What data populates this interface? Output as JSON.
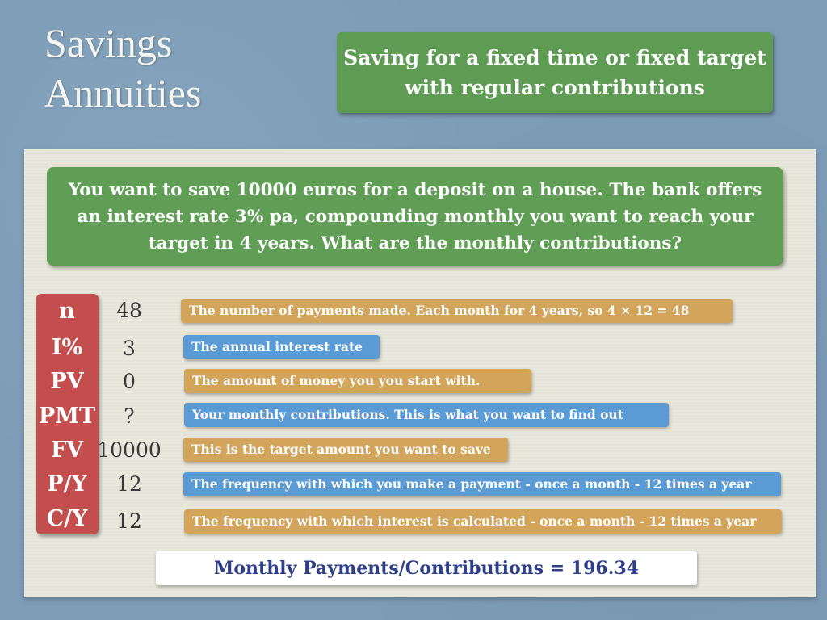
{
  "title": {
    "line1": "Savings",
    "line2": "Annuities"
  },
  "subtitle": "Saving for a fixed time or fixed target with regular contributions",
  "question": "You want to save 10000 euros for a deposit on a house. The bank offers an interest rate 3% pa, compounding monthly you want to reach your target in 4 years. What are the monthly contributions?",
  "variables": [
    {
      "label": "n",
      "value": "48",
      "description": "The number of payments made. Each month for 4 years, so 4 × 12 = 48"
    },
    {
      "label": "I%",
      "value": "3",
      "description": "The annual interest rate"
    },
    {
      "label": "PV",
      "value": "0",
      "description": "The amount of money you you start with."
    },
    {
      "label": "PMT",
      "value": "?",
      "description": "Your monthly contributions. This is what you want to find out"
    },
    {
      "label": "FV",
      "value": "10000",
      "description": "This is the target amount you want to save"
    },
    {
      "label": "P/Y",
      "value": "12",
      "description": "The frequency with which you make a payment - once a month - 12 times a year"
    },
    {
      "label": "C/Y",
      "value": "12",
      "description": "The frequency with which interest is calculated - once a month - 12 times a year"
    }
  ],
  "result": "Monthly Payments/Contributions = 196.34",
  "colors": {
    "background": "#7d9db7",
    "panel": "#e9e8dc",
    "green": "#5f9e54",
    "red": "#c44d4d",
    "gold": "#d2a55b",
    "blue": "#5b9bd5",
    "result_text": "#2e3f8a"
  }
}
